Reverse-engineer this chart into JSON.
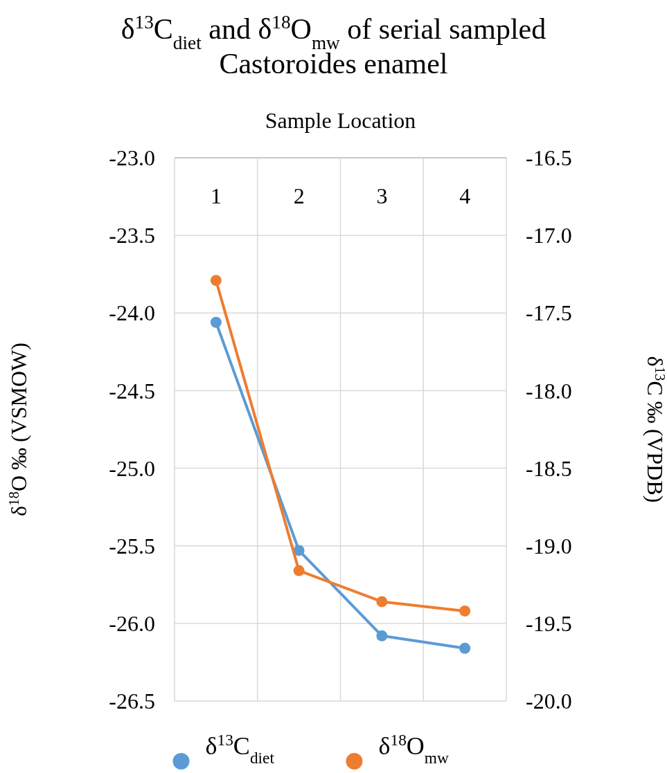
{
  "chart_data": {
    "type": "line",
    "title": "δ$^{13}$C$_{diet}$ and δ$^{18}$O$_{mw}$ of serial sampled Castoroides enamel",
    "xlabel": "Sample Location",
    "ylabel": "δ$^{18}$O ‰ (VSMOW)",
    "y2label": "δ$^{13}$C ‰ (VPDB)",
    "categories": [
      "1",
      "2",
      "3",
      "4"
    ],
    "series": [
      {
        "name": "δ$^{13}$C$_{diet}$",
        "color": "#5b9bd5",
        "axis": "y2",
        "values": [
          -17.56,
          -19.03,
          -19.58,
          -19.66
        ]
      },
      {
        "name": "δ$^{18}$O$_{mw}$",
        "color": "#ed7d31",
        "values": [
          -23.79,
          -25.66,
          -25.86,
          -25.92
        ]
      }
    ],
    "ylim": [
      -26.5,
      -23.0
    ],
    "yticks": [
      {
        "value": -26.5,
        "label": "-26.5"
      },
      {
        "value": -26.0,
        "label": "-26.0"
      },
      {
        "value": -25.5,
        "label": "-25.5"
      },
      {
        "value": -25.0,
        "label": "-25.0"
      },
      {
        "value": -24.5,
        "label": "-24.5"
      },
      {
        "value": -24.0,
        "label": "-24.0"
      },
      {
        "value": -23.5,
        "label": "-23.5"
      },
      {
        "value": -23.0,
        "label": "-23.0"
      }
    ],
    "y2lim": [
      -20.0,
      -16.5
    ],
    "y2ticks": [
      {
        "value": -20.0,
        "label": "-20.0"
      },
      {
        "value": -19.5,
        "label": "-19.5"
      },
      {
        "value": -19.0,
        "label": "-19.0"
      },
      {
        "value": -18.5,
        "label": "-18.5"
      },
      {
        "value": -18.0,
        "label": "-18.0"
      },
      {
        "value": -17.5,
        "label": "-17.5"
      },
      {
        "value": -17.0,
        "label": "-17.0"
      },
      {
        "value": -16.5,
        "label": "-16.5"
      }
    ],
    "grid": true,
    "legend": "bottom",
    "marker": "circle",
    "line_style": "solid"
  }
}
